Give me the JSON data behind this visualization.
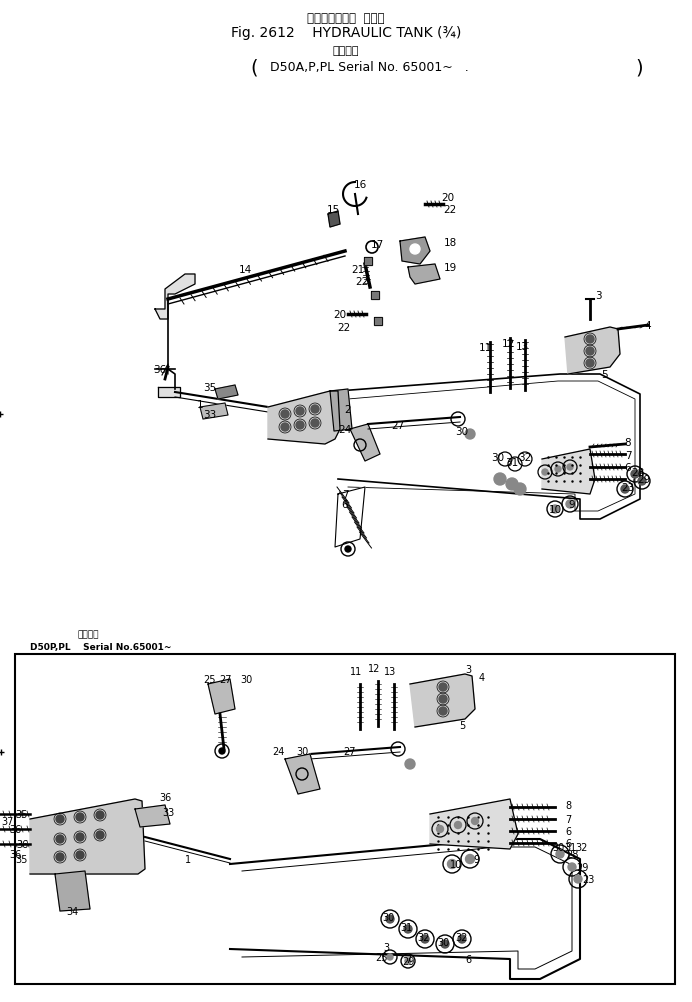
{
  "title_jp": "ハイドロリック  タンク",
  "title_en": "Fig. 2612    HYDRAULIC TANK (¾)",
  "subtitle_jp": "適用号機",
  "subtitle_en": "D50A,P,PL Serial No. 65001~   .   ",
  "inset_label_jp": "油用号機",
  "inset_label_en": "D50P,PL    Serial No.65001~",
  "bg_color": "#ffffff",
  "fig_width": 6.92,
  "fig_height": 10.03,
  "dpi": 100
}
